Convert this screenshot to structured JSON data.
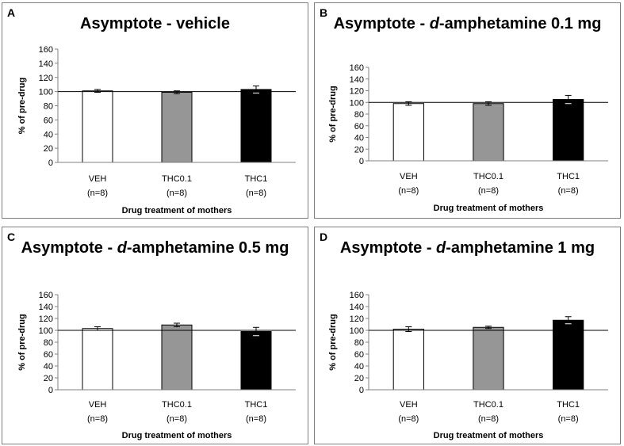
{
  "chart_data": [
    {
      "type": "bar",
      "panel_label": "A",
      "title_prefix": "Asymptote - ",
      "title_italic": "",
      "title_suffix": "vehicle",
      "ylabel": "% of pre-drug",
      "xlabel": "Drug treatment of mothers",
      "ylim": [
        0,
        160
      ],
      "yticks": [
        0,
        20,
        40,
        60,
        80,
        100,
        120,
        140,
        160
      ],
      "reference_line": 100,
      "categories": [
        "VEH",
        "THC0.1",
        "THC1"
      ],
      "n_labels": [
        "(n=8)",
        "(n=8)",
        "(n=8)"
      ],
      "values": [
        101,
        99,
        103
      ],
      "errors": [
        2,
        2,
        5
      ],
      "bar_colors": [
        "#ffffff",
        "#969696",
        "#000000"
      ]
    },
    {
      "type": "bar",
      "panel_label": "B",
      "title_prefix": "Asymptote - ",
      "title_italic": "d",
      "title_suffix": "-amphetamine 0.1 mg",
      "ylabel": "% of pre-drug",
      "xlabel": "Drug treatment of mothers",
      "ylim": [
        0,
        160
      ],
      "yticks": [
        0,
        20,
        40,
        60,
        80,
        100,
        120,
        140,
        160
      ],
      "reference_line": 100,
      "categories": [
        "VEH",
        "THC0.1",
        "THC1"
      ],
      "n_labels": [
        "(n=8)",
        "(n=8)",
        "(n=8)"
      ],
      "values": [
        98,
        98,
        105
      ],
      "errors": [
        3,
        3,
        7
      ],
      "bar_colors": [
        "#ffffff",
        "#969696",
        "#000000"
      ]
    },
    {
      "type": "bar",
      "panel_label": "C",
      "title_prefix": "Asymptote - ",
      "title_italic": "d",
      "title_suffix": "-amphetamine 0.5 mg",
      "ylabel": "% of pre-drug",
      "xlabel": "Drug treatment of mothers",
      "ylim": [
        0,
        160
      ],
      "yticks": [
        0,
        20,
        40,
        60,
        80,
        100,
        120,
        140,
        160
      ],
      "reference_line": 100,
      "categories": [
        "VEH",
        "THC0.1",
        "THC1"
      ],
      "n_labels": [
        "(n=8)",
        "(n=8)",
        "(n=8)"
      ],
      "values": [
        103,
        109,
        98
      ],
      "errors": [
        3,
        3,
        7
      ],
      "bar_colors": [
        "#ffffff",
        "#969696",
        "#000000"
      ]
    },
    {
      "type": "bar",
      "panel_label": "D",
      "title_prefix": "Asymptote - ",
      "title_italic": "d",
      "title_suffix": "-amphetamine 1 mg",
      "ylabel": "% of pre-drug",
      "xlabel": "Drug treatment of mothers",
      "ylim": [
        0,
        160
      ],
      "yticks": [
        0,
        20,
        40,
        60,
        80,
        100,
        120,
        140,
        160
      ],
      "reference_line": 100,
      "categories": [
        "VEH",
        "THC0.1",
        "THC1"
      ],
      "n_labels": [
        "(n=8)",
        "(n=8)",
        "(n=8)"
      ],
      "values": [
        102,
        105,
        117
      ],
      "errors": [
        4,
        2,
        6
      ],
      "bar_colors": [
        "#ffffff",
        "#969696",
        "#000000"
      ]
    }
  ]
}
